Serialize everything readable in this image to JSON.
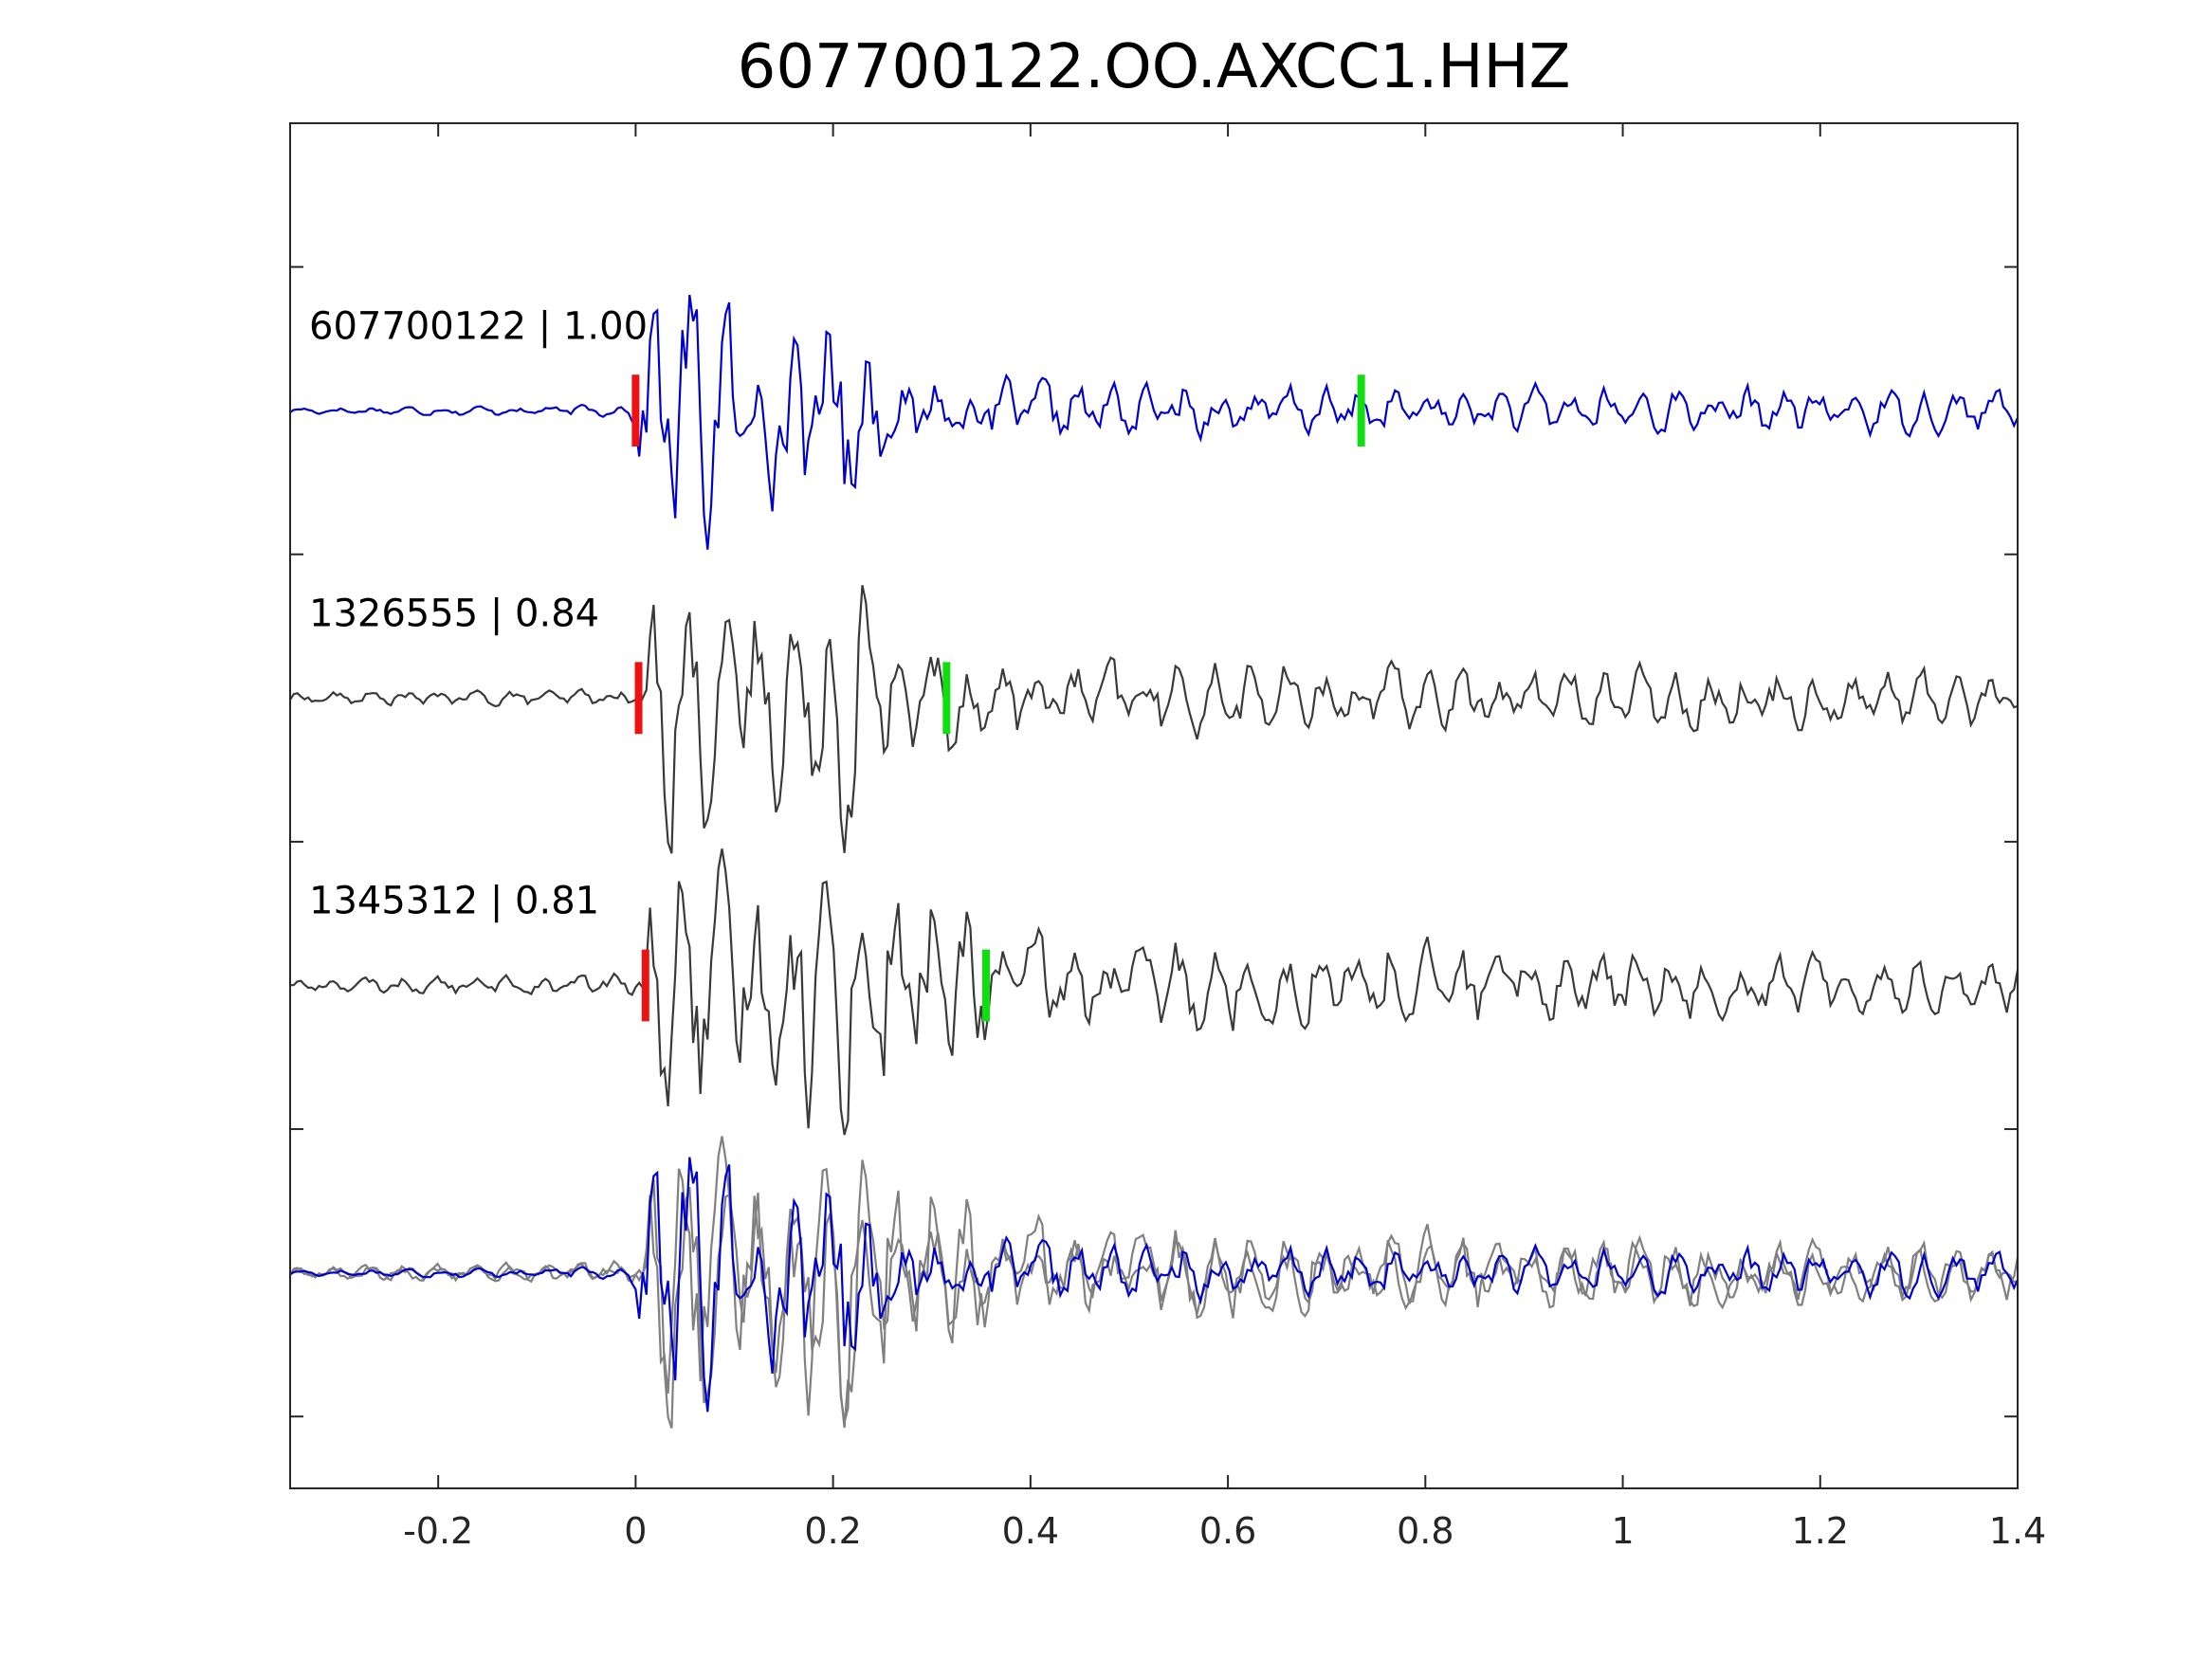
{
  "chart_data": {
    "type": "line",
    "title": "607700122.OO.AXCC1.HHZ",
    "xlabel": "",
    "ylabel": "",
    "xlim": [
      -0.35,
      1.4
    ],
    "x_ticks": [
      -0.2,
      0,
      0.2,
      0.4,
      0.6,
      0.8,
      1,
      1.2,
      1.4
    ],
    "x_tick_labels": [
      "-0.2",
      "0",
      "0.2",
      "0.4",
      "0.6",
      "0.8",
      "1",
      "1.2",
      "1.4"
    ],
    "ylim": [
      0,
      9.5
    ],
    "y_ticks": [
      0.5,
      2.5,
      4.5,
      6.5,
      8.5
    ],
    "grid": false,
    "colors": {
      "master": "#0000cc",
      "neighbor": "#3a3a3a",
      "overlay_neighbor": "#808080",
      "p_pick": "#ee1111",
      "s_pick": "#11dd11"
    },
    "series": [
      {
        "label": "607700122 | 1.00",
        "baseline": 7.5,
        "role": "master",
        "p_pick": 0.0,
        "s_pick": 0.735,
        "envelope": [
          [
            -0.35,
            0.02
          ],
          [
            -0.005,
            0.04
          ],
          [
            0.0,
            0.2
          ],
          [
            0.015,
            0.8
          ],
          [
            0.025,
            1.1
          ],
          [
            0.04,
            0.9
          ],
          [
            0.07,
            0.95
          ],
          [
            0.1,
            0.7
          ],
          [
            0.14,
            0.65
          ],
          [
            0.17,
            0.78
          ],
          [
            0.19,
            0.95
          ],
          [
            0.22,
            0.8
          ],
          [
            0.25,
            0.35
          ],
          [
            0.3,
            0.25
          ],
          [
            0.4,
            0.2
          ],
          [
            0.7,
            0.16
          ],
          [
            1.0,
            0.15
          ],
          [
            1.4,
            0.15
          ]
        ]
      },
      {
        "label": "1326555 | 0.84",
        "baseline": 5.5,
        "role": "neighbor",
        "p_pick": 0.003,
        "s_pick": 0.315,
        "envelope": [
          [
            -0.35,
            0.04
          ],
          [
            0.0,
            0.06
          ],
          [
            0.01,
            0.3
          ],
          [
            0.025,
            0.9
          ],
          [
            0.05,
            0.8
          ],
          [
            0.07,
            0.85
          ],
          [
            0.1,
            0.65
          ],
          [
            0.14,
            0.65
          ],
          [
            0.17,
            0.8
          ],
          [
            0.2,
            0.95
          ],
          [
            0.23,
            0.9
          ],
          [
            0.28,
            0.45
          ],
          [
            0.33,
            0.35
          ],
          [
            0.4,
            0.25
          ],
          [
            0.7,
            0.22
          ],
          [
            1.0,
            0.2
          ],
          [
            1.4,
            0.18
          ]
        ]
      },
      {
        "label": "1345312 | 0.81",
        "baseline": 3.5,
        "role": "neighbor",
        "p_pick": 0.01,
        "s_pick": 0.355,
        "envelope": [
          [
            -0.35,
            0.04
          ],
          [
            0.0,
            0.08
          ],
          [
            0.01,
            0.3
          ],
          [
            0.025,
            1.05
          ],
          [
            0.05,
            0.85
          ],
          [
            0.07,
            0.9
          ],
          [
            0.1,
            0.65
          ],
          [
            0.14,
            0.65
          ],
          [
            0.17,
            0.85
          ],
          [
            0.2,
            0.95
          ],
          [
            0.24,
            0.85
          ],
          [
            0.3,
            0.65
          ],
          [
            0.36,
            0.45
          ],
          [
            0.45,
            0.3
          ],
          [
            0.8,
            0.3
          ],
          [
            1.0,
            0.22
          ],
          [
            1.4,
            0.18
          ]
        ]
      }
    ],
    "overlay": {
      "baseline": 1.5,
      "description_traces": [
        "607700122",
        "1326555",
        "1345312"
      ]
    }
  }
}
